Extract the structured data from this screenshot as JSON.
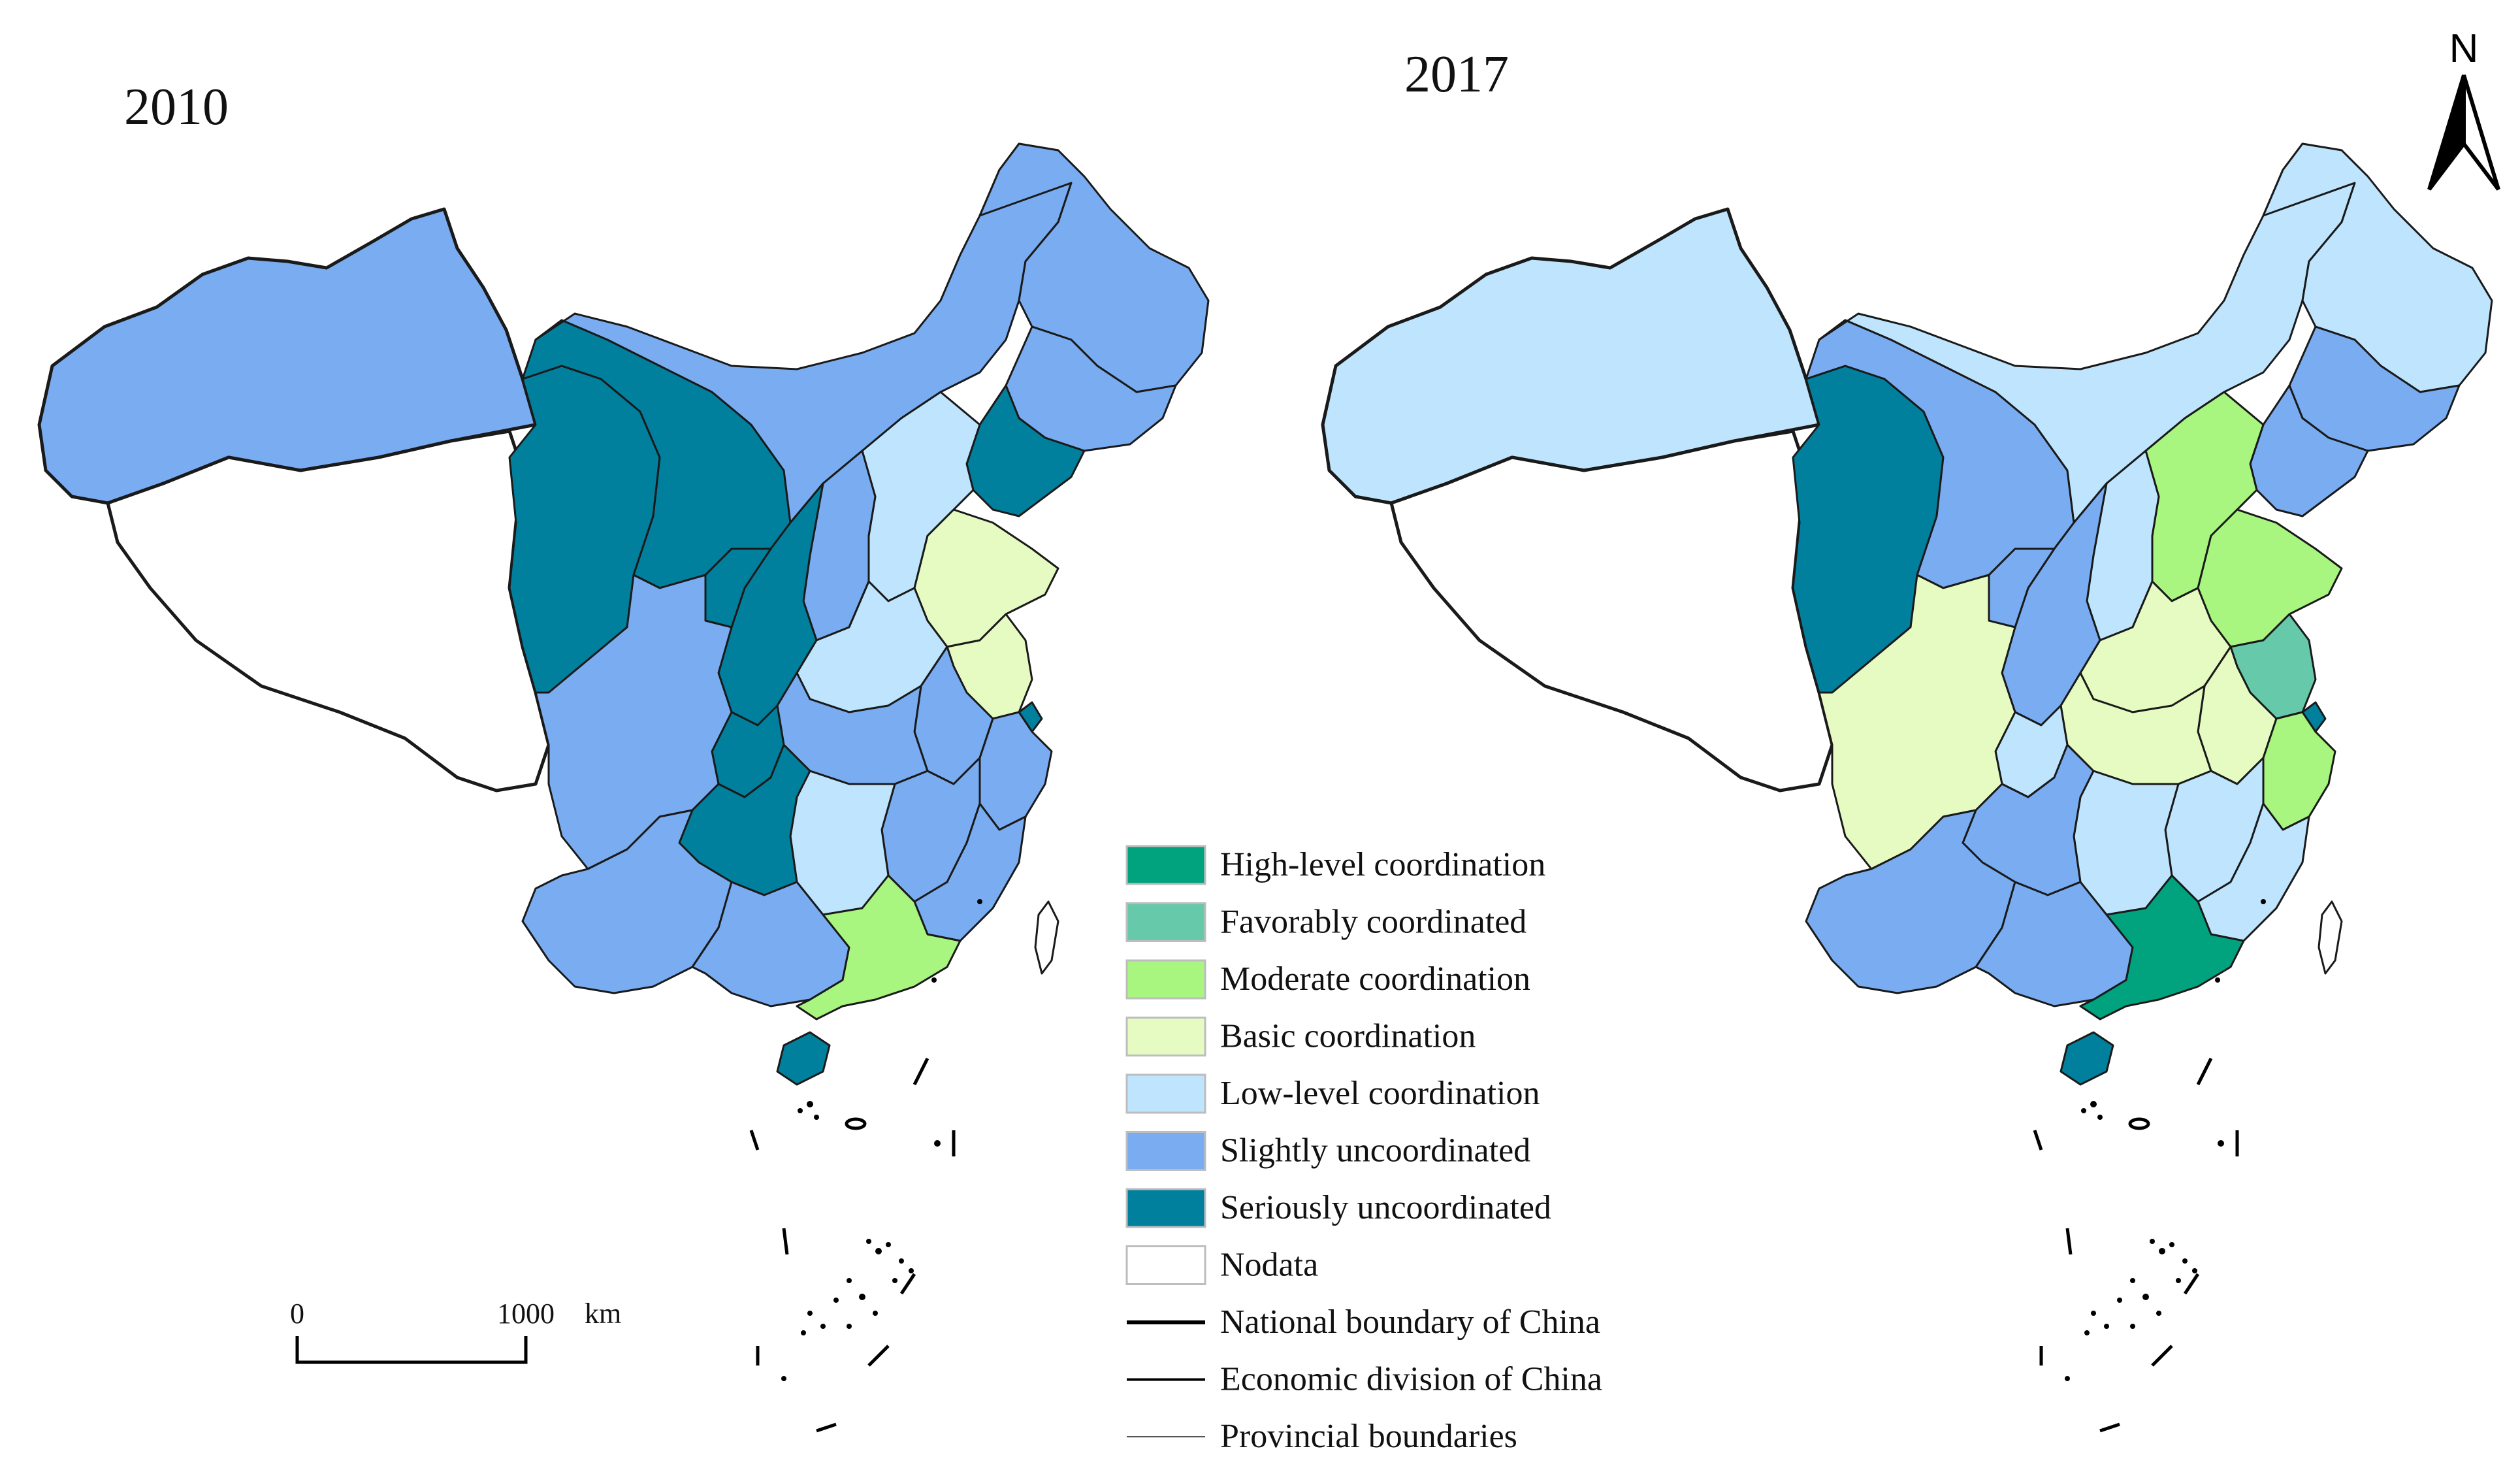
{
  "maps": [
    {
      "year": "2010",
      "regions": {
        "xinjiang": "slightly",
        "tibet": "nodata",
        "qinghai": "seriously",
        "gansu": "seriously",
        "inner_mongolia": "slightly",
        "heilongjiang": "slightly",
        "jilin": "slightly",
        "liaoning": "seriously",
        "beijing_hebei": "low",
        "shandong": "basic",
        "jiangsu": "basic",
        "shanghai": "seriously",
        "sichuan": "slightly",
        "yunnan": "slightly",
        "guangxi": "slightly",
        "guangdong": "moderate",
        "hainan": "seriously",
        "guizhou": "seriously",
        "hunan": "low",
        "chongqing": "seriously",
        "shaanxi": "seriously",
        "ningxia": "seriously",
        "shanxi": "slightly",
        "henan": "low",
        "hubei": "slightly",
        "anhui": "slightly",
        "jiangxi": "slightly",
        "fujian": "slightly",
        "zhejiang": "slightly",
        "taiwan": "nodata"
      }
    },
    {
      "year": "2017",
      "regions": {
        "xinjiang": "low",
        "tibet": "nodata",
        "qinghai": "seriously",
        "gansu": "slightly",
        "inner_mongolia": "low",
        "heilongjiang": "low",
        "jilin": "slightly",
        "liaoning": "slightly",
        "beijing_hebei": "moderate",
        "shandong": "moderate",
        "jiangsu": "favorably",
        "shanghai": "seriously",
        "sichuan": "basic",
        "yunnan": "slightly",
        "guangxi": "slightly",
        "guangdong": "high",
        "hainan": "seriously",
        "guizhou": "slightly",
        "hunan": "low",
        "chongqing": "low",
        "shaanxi": "slightly",
        "ningxia": "slightly",
        "shanxi": "low",
        "henan": "basic",
        "hubei": "basic",
        "anhui": "basic",
        "jiangxi": "low",
        "fujian": "low",
        "zhejiang": "moderate",
        "taiwan": "nodata"
      }
    }
  ],
  "legend": {
    "items": [
      {
        "key": "high",
        "label": "High-level coordination",
        "color": "#00a37e"
      },
      {
        "key": "favorably",
        "label": "Favorably coordinated",
        "color": "#66c9aa"
      },
      {
        "key": "moderate",
        "label": "Moderate coordination",
        "color": "#a8f57f"
      },
      {
        "key": "basic",
        "label": "Basic coordination",
        "color": "#e5fbc2"
      },
      {
        "key": "low",
        "label": "Low-level coordination",
        "color": "#bee5fd"
      },
      {
        "key": "slightly",
        "label": "Slightly uncoordinated",
        "color": "#79acf1"
      },
      {
        "key": "seriously",
        "label": "Seriously uncoordinated",
        "color": "#01809e"
      },
      {
        "key": "nodata",
        "label": "Nodata",
        "color": "#ffffff"
      }
    ],
    "lines": [
      {
        "label": "National boundary of China"
      },
      {
        "label": "Economic division of China"
      },
      {
        "label": "Provincial boundaries"
      }
    ]
  },
  "scale_bar": {
    "start": "0",
    "end": "1000",
    "unit": "km"
  },
  "north_arrow": {
    "label": "N"
  }
}
